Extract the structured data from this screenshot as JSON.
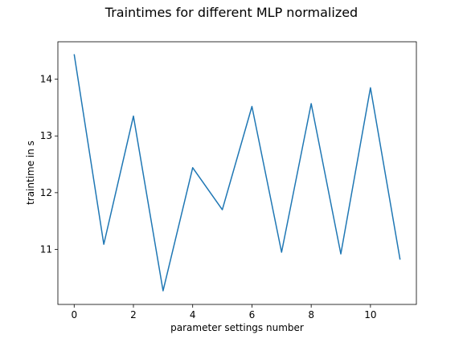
{
  "chart_data": {
    "type": "line",
    "title": "Traintimes for different MLP normalized",
    "xlabel": "parameter settings number",
    "ylabel": "traintime in s",
    "xlim": [
      -0.55,
      11.55
    ],
    "ylim": [
      10.03,
      14.66
    ],
    "xticks": [
      0,
      2,
      4,
      6,
      8,
      10
    ],
    "yticks": [
      11,
      12,
      13,
      14
    ],
    "grid": false,
    "series": [
      {
        "color": "#1f77b4",
        "x": [
          0,
          1,
          2,
          3,
          4,
          5,
          6,
          7,
          8,
          9,
          10,
          11
        ],
        "y": [
          14.44,
          11.09,
          13.35,
          10.27,
          12.44,
          11.7,
          13.52,
          10.95,
          13.57,
          10.92,
          13.85,
          10.82
        ]
      }
    ]
  }
}
